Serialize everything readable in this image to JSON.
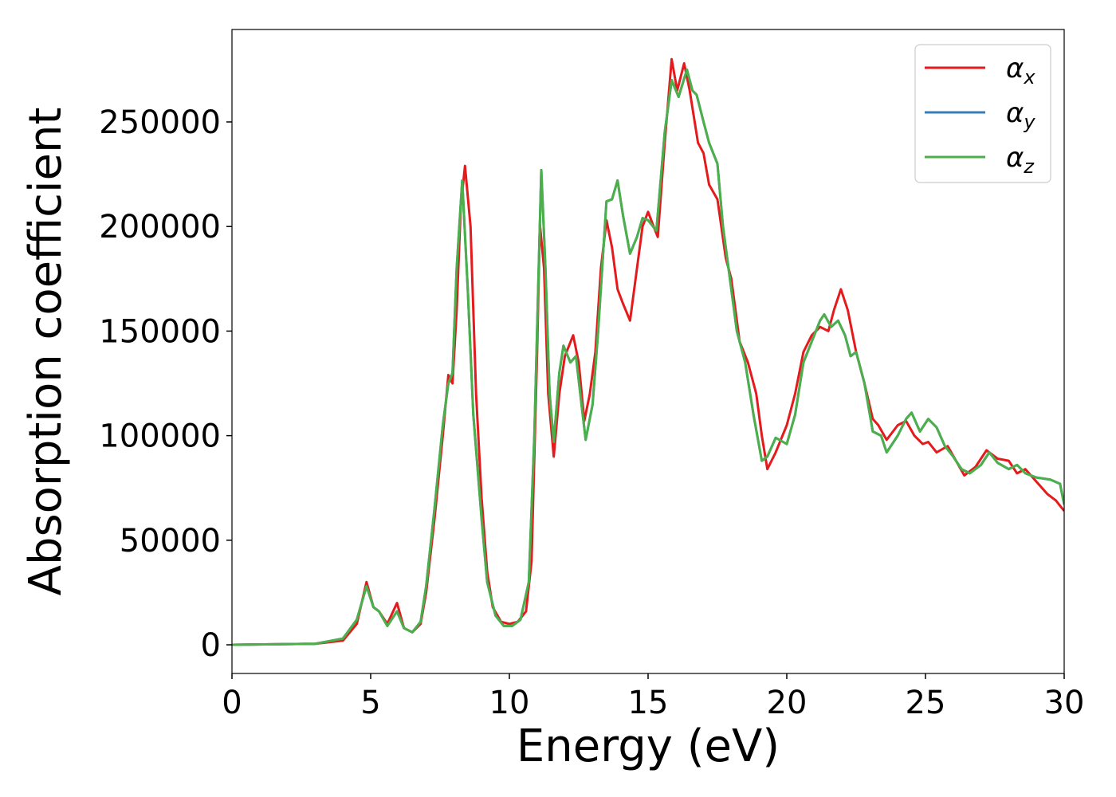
{
  "chart_data": {
    "type": "line",
    "xlabel": "Energy (eV)",
    "ylabel": "Absorption coefficient",
    "xlim": [
      0,
      30
    ],
    "xticks": [
      0,
      5,
      10,
      15,
      20,
      25,
      30
    ],
    "ylim": [
      -13700,
      294200
    ],
    "yticks": [
      0,
      50000,
      100000,
      150000,
      200000,
      250000
    ],
    "grid": false,
    "legend": "upper right",
    "series": [
      {
        "name": "αx",
        "color": "#e41a1c",
        "x": [
          0,
          3,
          4,
          4.5,
          4.85,
          5.1,
          5.3,
          5.6,
          5.95,
          6.2,
          6.5,
          6.8,
          7.0,
          7.3,
          7.6,
          7.8,
          7.95,
          8.1,
          8.25,
          8.4,
          8.6,
          8.8,
          9.0,
          9.2,
          9.4,
          9.7,
          10.0,
          10.3,
          10.6,
          10.8,
          11.0,
          11.1,
          11.25,
          11.4,
          11.6,
          11.8,
          12.0,
          12.3,
          12.5,
          12.7,
          12.9,
          13.1,
          13.3,
          13.5,
          13.7,
          13.9,
          14.1,
          14.35,
          14.6,
          14.8,
          15.0,
          15.2,
          15.35,
          15.6,
          15.85,
          16.05,
          16.3,
          16.5,
          16.8,
          17.0,
          17.2,
          17.5,
          17.8,
          18.0,
          18.3,
          18.6,
          18.9,
          19.1,
          19.3,
          19.6,
          20.0,
          20.3,
          20.6,
          20.9,
          21.2,
          21.5,
          21.7,
          21.95,
          22.2,
          22.5,
          22.8,
          23.1,
          23.3,
          23.6,
          24.0,
          24.3,
          24.6,
          24.9,
          25.1,
          25.4,
          25.8,
          26.1,
          26.4,
          26.8,
          27.2,
          27.6,
          28.0,
          28.3,
          28.6,
          29.0,
          29.4,
          29.7,
          30.0
        ],
        "values": [
          0,
          500,
          2000,
          10000,
          30000,
          18000,
          16000,
          10000,
          20000,
          8000,
          6000,
          10000,
          25000,
          60000,
          100000,
          129000,
          125000,
          160000,
          210000,
          229000,
          200000,
          120000,
          70000,
          35000,
          18000,
          11000,
          10000,
          11000,
          16000,
          40000,
          140000,
          201000,
          180000,
          120000,
          90000,
          120000,
          138000,
          148000,
          135000,
          107000,
          120000,
          140000,
          180000,
          203000,
          190000,
          170000,
          163000,
          155000,
          180000,
          200000,
          207000,
          200000,
          195000,
          240000,
          280000,
          265000,
          278000,
          265000,
          240000,
          235000,
          220000,
          213000,
          185000,
          175000,
          145000,
          135000,
          120000,
          100000,
          84000,
          92000,
          105000,
          120000,
          140000,
          148000,
          152000,
          150000,
          160000,
          170000,
          160000,
          140000,
          125000,
          108000,
          105000,
          98000,
          105000,
          107000,
          100000,
          96000,
          97000,
          92000,
          95000,
          88000,
          81000,
          85000,
          93000,
          89000,
          88000,
          82000,
          84000,
          78000,
          72000,
          69000,
          64000
        ]
      },
      {
        "name": "αy",
        "color": "#377eb8",
        "x": [
          0,
          3,
          4,
          4.5,
          4.85,
          5.1,
          5.3,
          5.6,
          5.95,
          6.2,
          6.5,
          6.8,
          7.0,
          7.3,
          7.6,
          7.8,
          7.95,
          8.1,
          8.3,
          8.5,
          8.7,
          9.0,
          9.2,
          9.5,
          9.8,
          10.1,
          10.4,
          10.7,
          10.9,
          11.15,
          11.3,
          11.45,
          11.6,
          11.8,
          11.95,
          12.2,
          12.4,
          12.6,
          12.75,
          13.0,
          13.2,
          13.5,
          13.7,
          13.9,
          14.1,
          14.35,
          14.6,
          14.8,
          15.0,
          15.3,
          15.6,
          15.85,
          16.1,
          16.4,
          16.6,
          16.75,
          17.0,
          17.2,
          17.5,
          17.7,
          17.9,
          18.2,
          18.5,
          18.8,
          19.1,
          19.3,
          19.6,
          20.0,
          20.3,
          20.6,
          20.9,
          21.2,
          21.35,
          21.6,
          21.85,
          22.1,
          22.3,
          22.5,
          22.8,
          23.1,
          23.4,
          23.6,
          24.0,
          24.3,
          24.5,
          24.8,
          25.1,
          25.4,
          25.7,
          26.0,
          26.3,
          26.6,
          27.0,
          27.3,
          27.6,
          28.0,
          28.3,
          28.6,
          29.0,
          29.5,
          29.85,
          30.0
        ],
        "values": [
          0,
          500,
          3000,
          12000,
          28000,
          18000,
          16000,
          9000,
          16000,
          8000,
          6000,
          11000,
          28000,
          65000,
          105000,
          125000,
          130000,
          180000,
          222000,
          170000,
          110000,
          60000,
          30000,
          14000,
          9000,
          9000,
          12000,
          30000,
          100000,
          227000,
          180000,
          120000,
          97000,
          130000,
          143000,
          135000,
          138000,
          115000,
          98000,
          115000,
          150000,
          212000,
          213000,
          222000,
          205000,
          187000,
          195000,
          204000,
          203000,
          198000,
          245000,
          270000,
          262000,
          275000,
          265000,
          263000,
          250000,
          240000,
          230000,
          200000,
          180000,
          150000,
          135000,
          110000,
          88000,
          90000,
          99000,
          96000,
          110000,
          135000,
          145000,
          155000,
          158000,
          152000,
          155000,
          148000,
          138000,
          140000,
          125000,
          102000,
          100000,
          92000,
          100000,
          108000,
          111000,
          102000,
          108000,
          104000,
          95000,
          90000,
          84000,
          82000,
          86000,
          92000,
          87000,
          84000,
          86000,
          82000,
          80000,
          79000,
          77000,
          67000
        ]
      },
      {
        "name": "αz",
        "color": "#4daf4a",
        "x": [
          0,
          3,
          4,
          4.5,
          4.85,
          5.1,
          5.3,
          5.6,
          5.95,
          6.2,
          6.5,
          6.8,
          7.0,
          7.3,
          7.6,
          7.8,
          7.95,
          8.1,
          8.3,
          8.5,
          8.7,
          9.0,
          9.2,
          9.5,
          9.8,
          10.1,
          10.4,
          10.7,
          10.9,
          11.15,
          11.3,
          11.45,
          11.6,
          11.8,
          11.95,
          12.2,
          12.4,
          12.6,
          12.75,
          13.0,
          13.2,
          13.5,
          13.7,
          13.9,
          14.1,
          14.35,
          14.6,
          14.8,
          15.0,
          15.3,
          15.6,
          15.85,
          16.1,
          16.4,
          16.6,
          16.75,
          17.0,
          17.2,
          17.5,
          17.7,
          17.9,
          18.2,
          18.5,
          18.8,
          19.1,
          19.3,
          19.6,
          20.0,
          20.3,
          20.6,
          20.9,
          21.2,
          21.35,
          21.6,
          21.85,
          22.1,
          22.3,
          22.5,
          22.8,
          23.1,
          23.4,
          23.6,
          24.0,
          24.3,
          24.5,
          24.8,
          25.1,
          25.4,
          25.7,
          26.0,
          26.3,
          26.6,
          27.0,
          27.3,
          27.6,
          28.0,
          28.3,
          28.6,
          29.0,
          29.5,
          29.85,
          30.0
        ],
        "values": [
          0,
          500,
          3000,
          12000,
          28000,
          18000,
          16000,
          9000,
          16000,
          8000,
          6000,
          11000,
          28000,
          65000,
          105000,
          125000,
          130000,
          180000,
          222000,
          170000,
          110000,
          60000,
          30000,
          14000,
          9000,
          9000,
          12000,
          30000,
          100000,
          227000,
          180000,
          120000,
          97000,
          130000,
          143000,
          135000,
          138000,
          115000,
          98000,
          115000,
          150000,
          212000,
          213000,
          222000,
          205000,
          187000,
          195000,
          204000,
          203000,
          198000,
          245000,
          270000,
          262000,
          275000,
          265000,
          263000,
          250000,
          240000,
          230000,
          200000,
          180000,
          150000,
          135000,
          110000,
          88000,
          90000,
          99000,
          96000,
          110000,
          135000,
          145000,
          155000,
          158000,
          152000,
          155000,
          148000,
          138000,
          140000,
          125000,
          102000,
          100000,
          92000,
          100000,
          108000,
          111000,
          102000,
          108000,
          104000,
          95000,
          90000,
          84000,
          82000,
          86000,
          92000,
          87000,
          84000,
          86000,
          82000,
          80000,
          79000,
          77000,
          67000
        ]
      }
    ]
  }
}
